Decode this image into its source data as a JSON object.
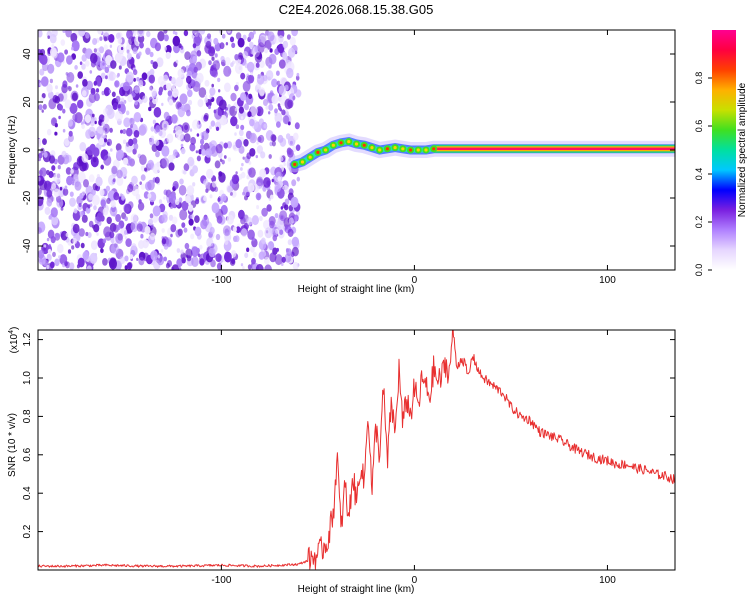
{
  "figure_title": "C2E4.2026.068.15.38.G05",
  "chart_data": [
    {
      "type": "heatmap",
      "name": "spectrogram",
      "xlabel": "Height of straight line (km)",
      "ylabel": "Frequency (Hz)",
      "xlim": [
        -195,
        135
      ],
      "ylim": [
        -50,
        50
      ],
      "x_ticks": [
        -100,
        0,
        100
      ],
      "y_ticks": [
        -40,
        -20,
        0,
        20,
        40
      ],
      "noise_region_x": [
        -195,
        -60
      ],
      "signal_ridge": {
        "x": [
          -62,
          -58,
          -54,
          -50,
          -46,
          -42,
          -38,
          -34,
          -30,
          -26,
          -22,
          -18,
          -14,
          -10,
          -6,
          -2,
          2,
          6,
          10,
          135
        ],
        "frequency": [
          -6,
          -5,
          -3,
          -1,
          0,
          2,
          3,
          3.5,
          2.5,
          2,
          1,
          0,
          0.5,
          1,
          0.5,
          0,
          0,
          0,
          0.5,
          0.5
        ]
      },
      "colorbar": {
        "label": "Normalized spectral amplitude",
        "ticks": [
          0.0,
          0.2,
          0.4,
          0.6,
          0.8
        ],
        "range": [
          0,
          1
        ],
        "colors": [
          "#ffffff",
          "#e6d6ff",
          "#b080ff",
          "#7a20e0",
          "#0000ff",
          "#00c8ff",
          "#00e0a0",
          "#40e020",
          "#c8e000",
          "#ffb000",
          "#ff4000",
          "#ff0040",
          "#ff0090"
        ]
      }
    },
    {
      "type": "line",
      "name": "snr",
      "xlabel": "Height of straight line (km)",
      "ylabel": "SNR (10 * v/v)",
      "y_multiplier": "(x10",
      "y_multiplier_exp": "4",
      "y_multiplier_close": ")",
      "xlim": [
        -195,
        135
      ],
      "ylim": [
        0,
        1.25
      ],
      "x_ticks": [
        -100,
        0,
        100
      ],
      "y_ticks": [
        0.2,
        0.4,
        0.6,
        0.8,
        1.0,
        1.2
      ],
      "color": "#e83030",
      "series": [
        {
          "x": [
            -195,
            -180,
            -160,
            -140,
            -120,
            -100,
            -80,
            -70,
            -60,
            -55,
            -50,
            -45,
            -42,
            -40,
            -38,
            -36,
            -34,
            -32,
            -30,
            -28,
            -26,
            -24,
            -22,
            -20,
            -18,
            -16,
            -14,
            -12,
            -10,
            -8,
            -6,
            -4,
            -2,
            0,
            2,
            4,
            6,
            8,
            10,
            12,
            14,
            16,
            18,
            20,
            22,
            24,
            26,
            28,
            30,
            34,
            38,
            42,
            46,
            50,
            55,
            60,
            65,
            70,
            75,
            80,
            85,
            90,
            95,
            100,
            105,
            110,
            115,
            120,
            125,
            130,
            135
          ],
          "values": [
            0.02,
            0.02,
            0.025,
            0.02,
            0.02,
            0.025,
            0.02,
            0.025,
            0.03,
            0.05,
            0.08,
            0.15,
            0.3,
            0.6,
            0.2,
            0.45,
            0.25,
            0.5,
            0.35,
            0.55,
            0.45,
            0.85,
            0.4,
            0.75,
            0.6,
            0.95,
            0.55,
            0.88,
            0.7,
            1.05,
            0.75,
            0.9,
            0.8,
            0.95,
            0.85,
            1.0,
            0.95,
            0.9,
            1.05,
            0.98,
            1.0,
            1.08,
            1.02,
            1.25,
            1.05,
            1.1,
            1.08,
            1.0,
            1.12,
            1.02,
            0.98,
            0.95,
            0.92,
            0.85,
            0.8,
            0.78,
            0.72,
            0.7,
            0.68,
            0.65,
            0.62,
            0.6,
            0.58,
            0.57,
            0.55,
            0.55,
            0.53,
            0.52,
            0.5,
            0.49,
            0.47
          ]
        }
      ]
    }
  ]
}
